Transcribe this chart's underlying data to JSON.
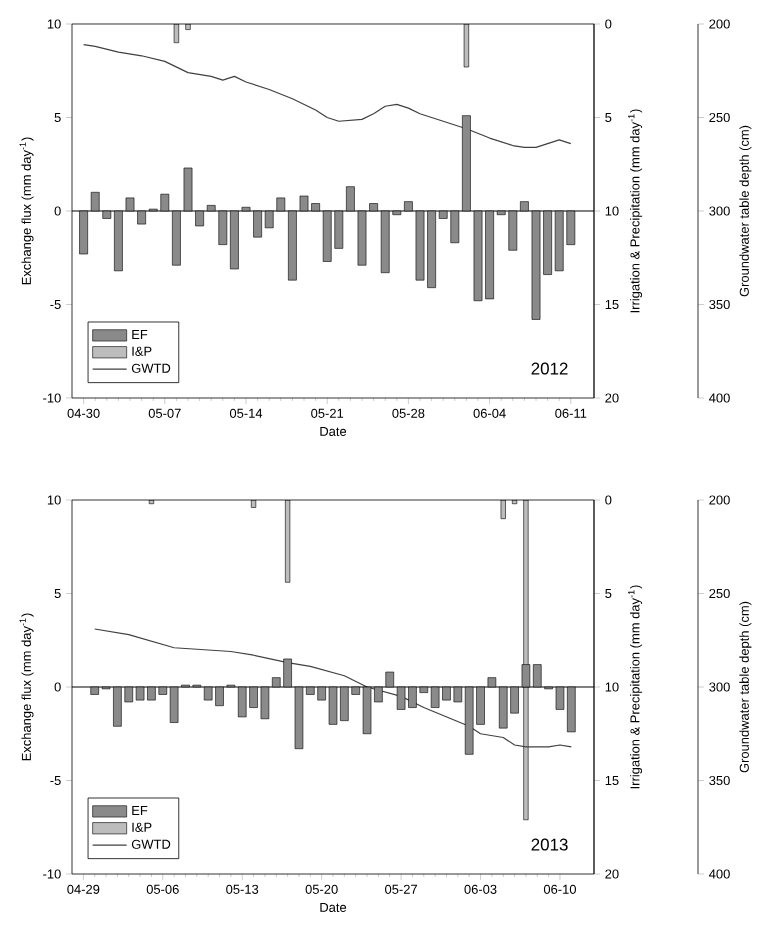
{
  "chart_data": [
    {
      "type": "bar",
      "xlabel": "Date",
      "ylabel": "Exchange flux (mm day$^{-1}$)",
      "y2label": "Irrigation & Precipitation (mm day$^{-1}$)",
      "y3label": "Groundwater table depth (cm)",
      "annotations": [
        "2012"
      ],
      "x": [
        "2012-04-30",
        "2012-05-01",
        "2012-05-02",
        "2012-05-03",
        "2012-05-04",
        "2012-05-05",
        "2012-05-06",
        "2012-05-07",
        "2012-05-08",
        "2012-05-09",
        "2012-05-10",
        "2012-05-11",
        "2012-05-12",
        "2012-05-13",
        "2012-05-14",
        "2012-05-15",
        "2012-05-16",
        "2012-05-17",
        "2012-05-18",
        "2012-05-19",
        "2012-05-20",
        "2012-05-21",
        "2012-05-22",
        "2012-05-23",
        "2012-05-24",
        "2012-05-25",
        "2012-05-26",
        "2012-05-27",
        "2012-05-28",
        "2012-05-29",
        "2012-05-30",
        "2012-05-31",
        "2012-06-01",
        "2012-06-02",
        "2012-06-03",
        "2012-06-04",
        "2012-06-05",
        "2012-06-06",
        "2012-06-07",
        "2012-06-08",
        "2012-06-09",
        "2012-06-10",
        "2012-06-11"
      ],
      "xlim": [
        "2012-04-29",
        "2012-06-13"
      ],
      "xticks": [
        {
          "value": "2012-04-30",
          "label": "04-30"
        },
        {
          "value": "2012-05-07",
          "label": "05-07"
        },
        {
          "value": "2012-05-14",
          "label": "05-14"
        },
        {
          "value": "2012-05-21",
          "label": "05-21"
        },
        {
          "value": "2012-05-28",
          "label": "05-28"
        },
        {
          "value": "2012-06-04",
          "label": "06-04"
        },
        {
          "value": "2012-06-11",
          "label": "06-11"
        }
      ],
      "ylim": [
        -10,
        10
      ],
      "yticks": [
        -10,
        -5,
        0,
        5,
        10
      ],
      "y2lim": [
        20,
        0
      ],
      "y2ticks": [
        0,
        5,
        10,
        15,
        20
      ],
      "y3lim": [
        400,
        200
      ],
      "y3ticks": [
        200,
        250,
        300,
        350,
        400
      ],
      "ref_lines": [
        {
          "axis": "y",
          "value": 0
        }
      ],
      "legend": "bottom left",
      "series": [
        {
          "name": "EF",
          "color": "#8a8a8a",
          "values": [
            -2.3,
            1.0,
            -0.4,
            -3.2,
            0.7,
            -0.7,
            0.1,
            0.9,
            -2.9,
            2.3,
            -0.8,
            0.3,
            -1.8,
            -3.1,
            0.2,
            -1.4,
            -0.9,
            0.7,
            -3.7,
            0.8,
            0.4,
            -2.7,
            -2.0,
            1.3,
            -2.9,
            0.4,
            -3.3,
            -0.2,
            0.5,
            -3.7,
            -4.1,
            -0.4,
            -1.7,
            5.1,
            -4.8,
            -4.7,
            -0.2,
            -2.1,
            0.5,
            -5.8,
            -3.4,
            -3.2,
            -1.8
          ]
        },
        {
          "name": "I&P",
          "axis": "y2",
          "color": "#bdbdbd",
          "x": [
            "2012-05-08",
            "2012-05-09",
            "2012-06-02"
          ],
          "values": [
            1.0,
            0.3,
            2.3
          ]
        },
        {
          "name": "GWTD",
          "type": "line",
          "axis": "y3",
          "color": "#404040",
          "x": [
            "2012-04-30",
            "2012-05-01",
            "2012-05-03",
            "2012-05-05",
            "2012-05-07",
            "2012-05-09",
            "2012-05-11",
            "2012-05-12",
            "2012-05-13",
            "2012-05-14",
            "2012-05-16",
            "2012-05-18",
            "2012-05-20",
            "2012-05-21",
            "2012-05-22",
            "2012-05-24",
            "2012-05-25",
            "2012-05-26",
            "2012-05-27",
            "2012-05-28",
            "2012-05-29",
            "2012-05-31",
            "2012-06-02",
            "2012-06-04",
            "2012-06-06",
            "2012-06-07",
            "2012-06-08",
            "2012-06-10",
            "2012-06-11"
          ],
          "values": [
            211,
            212,
            215,
            217,
            220,
            226,
            228,
            230,
            228,
            231,
            235,
            240,
            246,
            250,
            252,
            251,
            248,
            244,
            243,
            245,
            248,
            252,
            256,
            261,
            265,
            266,
            266,
            262,
            264
          ]
        }
      ]
    },
    {
      "type": "bar",
      "xlabel": "Date",
      "ylabel": "Exchange flux (mm day$^{-1}$)",
      "y2label": "Irrigation & Precipitation (mm day$^{-1}$)",
      "y3label": "Groundwater table depth (cm)",
      "annotations": [
        "2013"
      ],
      "x": [
        "2013-04-30",
        "2013-05-01",
        "2013-05-02",
        "2013-05-03",
        "2013-05-04",
        "2013-05-05",
        "2013-05-06",
        "2013-05-07",
        "2013-05-08",
        "2013-05-09",
        "2013-05-10",
        "2013-05-11",
        "2013-05-12",
        "2013-05-13",
        "2013-05-14",
        "2013-05-15",
        "2013-05-16",
        "2013-05-17",
        "2013-05-18",
        "2013-05-19",
        "2013-05-20",
        "2013-05-21",
        "2013-05-22",
        "2013-05-23",
        "2013-05-24",
        "2013-05-25",
        "2013-05-26",
        "2013-05-27",
        "2013-05-28",
        "2013-05-29",
        "2013-05-30",
        "2013-05-31",
        "2013-06-01",
        "2013-06-02",
        "2013-06-03",
        "2013-06-04",
        "2013-06-05",
        "2013-06-06",
        "2013-06-07",
        "2013-06-08",
        "2013-06-09",
        "2013-06-10",
        "2013-06-11"
      ],
      "xlim": [
        "2013-04-28",
        "2013-06-13"
      ],
      "xticks": [
        {
          "value": "2013-04-29",
          "label": "04-29"
        },
        {
          "value": "2013-05-06",
          "label": "05-06"
        },
        {
          "value": "2013-05-13",
          "label": "05-13"
        },
        {
          "value": "2013-05-20",
          "label": "05-20"
        },
        {
          "value": "2013-05-27",
          "label": "05-27"
        },
        {
          "value": "2013-06-03",
          "label": "06-03"
        },
        {
          "value": "2013-06-10",
          "label": "06-10"
        }
      ],
      "ylim": [
        -10,
        10
      ],
      "yticks": [
        -10,
        -5,
        0,
        5,
        10
      ],
      "y2lim": [
        20,
        0
      ],
      "y2ticks": [
        0,
        5,
        10,
        15,
        20
      ],
      "y3lim": [
        400,
        200
      ],
      "y3ticks": [
        200,
        250,
        300,
        350,
        400
      ],
      "ref_lines": [
        {
          "axis": "y",
          "value": 0
        }
      ],
      "legend": "bottom left",
      "series": [
        {
          "name": "EF",
          "color": "#8a8a8a",
          "values": [
            -0.4,
            -0.1,
            -2.1,
            -0.8,
            -0.7,
            -0.7,
            -0.4,
            -1.9,
            0.1,
            0.1,
            -0.7,
            -1.0,
            0.1,
            -1.6,
            -1.1,
            -1.7,
            0.5,
            1.5,
            -3.3,
            -0.4,
            -0.7,
            -2.0,
            -1.8,
            -0.4,
            -2.5,
            -0.8,
            0.8,
            -1.2,
            -1.1,
            -0.3,
            -1.1,
            -0.7,
            -0.8,
            -3.6,
            -2.0,
            0.5,
            -2.2,
            -1.4,
            1.2,
            1.2,
            -0.1,
            -1.2,
            -2.4
          ]
        },
        {
          "name": "I&P",
          "axis": "y2",
          "color": "#bdbdbd",
          "x": [
            "2013-05-05",
            "2013-05-14",
            "2013-05-17",
            "2013-06-05",
            "2013-06-06",
            "2013-06-07"
          ],
          "values": [
            0.2,
            0.4,
            4.4,
            1.0,
            0.2,
            17.1
          ]
        },
        {
          "name": "GWTD",
          "type": "line",
          "axis": "y3",
          "color": "#404040",
          "x": [
            "2013-04-30",
            "2013-05-03",
            "2013-05-07",
            "2013-05-12",
            "2013-05-14",
            "2013-05-17",
            "2013-05-19",
            "2013-05-22",
            "2013-05-24",
            "2013-05-27",
            "2013-05-29",
            "2013-05-31",
            "2013-06-02",
            "2013-06-03",
            "2013-06-05",
            "2013-06-06",
            "2013-06-07",
            "2013-06-09",
            "2013-06-10",
            "2013-06-11"
          ],
          "values": [
            269,
            272,
            279,
            281,
            283,
            287,
            289,
            294,
            300,
            305,
            311,
            316,
            321,
            325,
            327,
            331,
            332,
            332,
            331,
            332
          ]
        }
      ]
    }
  ]
}
